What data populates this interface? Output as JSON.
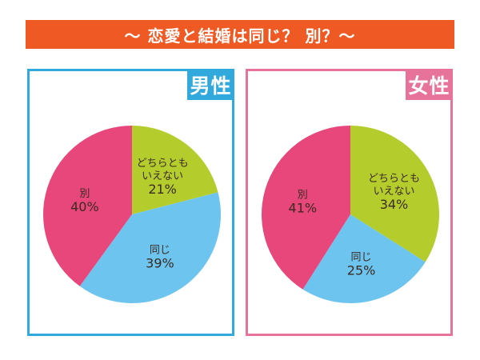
{
  "title": "～ 恋愛と結婚は同じ？ 別？～",
  "colors": {
    "title_bg": "#ef5a24",
    "male": "#32a9dc",
    "female": "#e8739a"
  },
  "chart_data": [
    {
      "type": "pie",
      "title": "男性",
      "slices": [
        {
          "label": [
            "どちらとも",
            "いえない"
          ],
          "value": 21,
          "display": "21%",
          "color": "#b4cd2c"
        },
        {
          "label": [
            "同じ"
          ],
          "value": 39,
          "display": "39%",
          "color": "#6dc4ef"
        },
        {
          "label": [
            "別"
          ],
          "value": 40,
          "display": "40%",
          "color": "#e7477a"
        }
      ]
    },
    {
      "type": "pie",
      "title": "女性",
      "slices": [
        {
          "label": [
            "どちらとも",
            "いえない"
          ],
          "value": 34,
          "display": "34%",
          "color": "#b4cd2c"
        },
        {
          "label": [
            "同じ"
          ],
          "value": 25,
          "display": "25%",
          "color": "#6dc4ef"
        },
        {
          "label": [
            "別"
          ],
          "value": 41,
          "display": "41%",
          "color": "#e7477a"
        }
      ]
    }
  ]
}
